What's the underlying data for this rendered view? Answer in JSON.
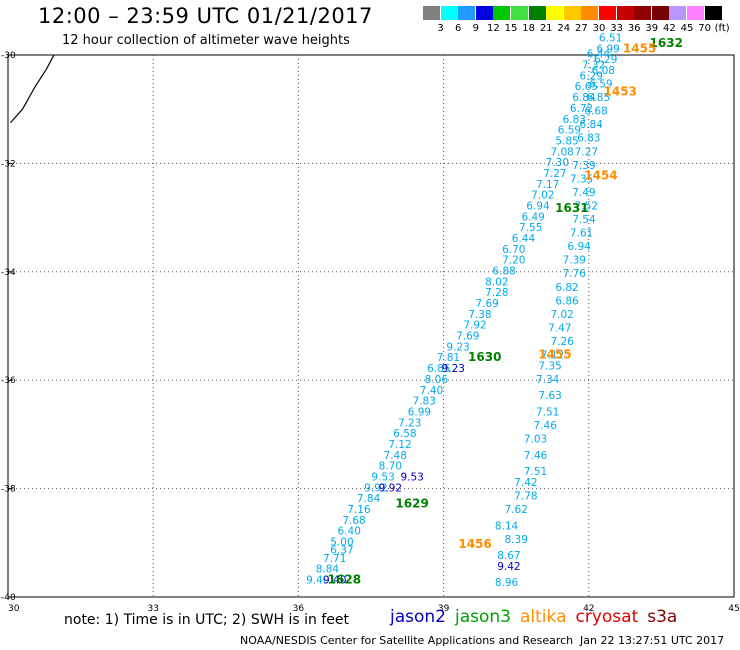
{
  "header": {
    "title": "12:00 – 23:59 UTC 01/21/2017",
    "subtitle": "12 hour collection of altimeter wave heights"
  },
  "legend": {
    "colors": [
      "#808080",
      "#00ffff",
      "#1e9cff",
      "#0000e0",
      "#00c800",
      "#40e040",
      "#008000",
      "#ffff00",
      "#ffc800",
      "#ff8c00",
      "#ff0000",
      "#c80000",
      "#900000",
      "#780000",
      "#b896ff",
      "#ff80ff",
      "#000000"
    ],
    "labels": [
      "3",
      "6",
      "9",
      "12",
      "15",
      "18",
      "21",
      "24",
      "27",
      "30",
      "33",
      "36",
      "39",
      "42",
      "45",
      "70"
    ],
    "unit": "(ft)"
  },
  "map": {
    "lon_range": [
      30,
      45
    ],
    "lat_range": [
      -40,
      -30
    ],
    "x_tick_labels": [
      "30",
      "33",
      "36",
      "39",
      "42",
      "45"
    ],
    "y_tick_labels": [
      "-30",
      "-32",
      "-34",
      "-36",
      "-38",
      "-40"
    ],
    "grid": "dotted",
    "coastline": [
      [
        30.05,
        -31.25
      ],
      [
        30.3,
        -31.0
      ],
      [
        30.55,
        -30.6
      ],
      [
        30.8,
        -30.25
      ],
      [
        30.95,
        -30.0
      ]
    ]
  },
  "tracks": [
    {
      "satellite": "jason3",
      "color": "#00aaee",
      "points": [
        [
          36.4,
          -39.75,
          "9.40"
        ],
        [
          36.6,
          -39.55,
          "8.84"
        ],
        [
          36.75,
          -39.35,
          "7.71"
        ],
        [
          36.9,
          -39.2,
          "6.37"
        ],
        [
          36.9,
          -39.05,
          "5.00"
        ],
        [
          37.05,
          -38.85,
          "6.40"
        ],
        [
          37.15,
          -38.65,
          "7.68"
        ],
        [
          37.25,
          -38.45,
          "7.16"
        ],
        [
          37.45,
          -38.25,
          "7.84"
        ],
        [
          37.6,
          -38.05,
          "9.92"
        ],
        [
          37.75,
          -37.85,
          "9.53"
        ],
        [
          37.9,
          -37.65,
          "8.70"
        ],
        [
          38.0,
          -37.45,
          "7.48"
        ],
        [
          38.1,
          -37.25,
          "7.12"
        ],
        [
          38.2,
          -37.05,
          "6.58"
        ],
        [
          38.3,
          -36.85,
          "7.23"
        ],
        [
          38.5,
          -36.65,
          "6.99"
        ],
        [
          38.6,
          -36.45,
          "7.83"
        ],
        [
          38.75,
          -36.25,
          "7.40"
        ],
        [
          38.85,
          -36.05,
          "8.06"
        ],
        [
          38.9,
          -35.85,
          "6.85"
        ],
        [
          39.1,
          -35.65,
          "7.81"
        ],
        [
          39.3,
          -35.45,
          "9.23"
        ],
        [
          39.5,
          -35.25,
          "7.69"
        ],
        [
          39.65,
          -35.05,
          "7.92"
        ],
        [
          39.75,
          -34.85,
          "7.38"
        ],
        [
          39.9,
          -34.65,
          "7.69"
        ],
        [
          40.1,
          -34.45,
          "7.28"
        ],
        [
          40.1,
          -34.25,
          "8.02"
        ],
        [
          40.25,
          -34.05,
          "6.88"
        ],
        [
          40.45,
          -33.85,
          "7.20"
        ],
        [
          40.45,
          -33.65,
          "6.70"
        ],
        [
          40.65,
          -33.45,
          "6.44"
        ],
        [
          40.8,
          -33.25,
          "7.55"
        ],
        [
          40.85,
          -33.05,
          "6.49"
        ],
        [
          40.95,
          -32.85,
          "6.94"
        ],
        [
          41.05,
          -32.65,
          "7.02"
        ],
        [
          41.15,
          -32.45,
          "7.17"
        ],
        [
          41.3,
          -32.25,
          "7.27"
        ],
        [
          41.35,
          -32.05,
          "7.30"
        ],
        [
          41.45,
          -31.85,
          "7.08"
        ],
        [
          41.55,
          -31.65,
          "5.85"
        ],
        [
          41.6,
          -31.45,
          "6.59"
        ],
        [
          41.7,
          -31.25,
          "6.83"
        ],
        [
          41.85,
          -31.05,
          "6.72"
        ],
        [
          41.9,
          -30.85,
          "6.84"
        ],
        [
          41.95,
          -30.65,
          "6.65"
        ],
        [
          42.05,
          -30.45,
          "6.29"
        ],
        [
          42.1,
          -30.25,
          "7.32"
        ],
        [
          42.2,
          -30.05,
          "6.44"
        ]
      ]
    },
    {
      "satellite": "jason2",
      "color": "#0000c8",
      "points": [
        [
          36.75,
          -39.75,
          "9.40"
        ],
        [
          37.9,
          -38.05,
          "9.92"
        ],
        [
          38.35,
          -37.85,
          "9.53"
        ],
        [
          39.2,
          -35.85,
          "9.23"
        ],
        [
          40.35,
          -39.5,
          "9.42"
        ]
      ]
    },
    {
      "satellite": "jason3",
      "color": "#00aaee",
      "points": [
        [
          40.3,
          -39.8,
          "8.96"
        ],
        [
          40.35,
          -39.3,
          "8.67"
        ],
        [
          40.5,
          -39.0,
          "8.39"
        ],
        [
          40.3,
          -38.75,
          "8.14"
        ],
        [
          40.5,
          -38.45,
          "7.62"
        ],
        [
          40.7,
          -38.2,
          "7.78"
        ],
        [
          40.7,
          -37.95,
          "7.42"
        ],
        [
          40.9,
          -37.75,
          "7.51"
        ],
        [
          40.9,
          -37.45,
          "7.46"
        ],
        [
          40.9,
          -37.15,
          "7.03"
        ],
        [
          41.1,
          -36.9,
          "7.46"
        ],
        [
          41.15,
          -36.65,
          "7.51"
        ],
        [
          41.2,
          -36.35,
          "7.63"
        ],
        [
          41.15,
          -36.05,
          "7.34"
        ],
        [
          41.2,
          -35.8,
          "7.35"
        ],
        [
          41.25,
          -35.6,
          "7.12"
        ],
        [
          41.45,
          -35.35,
          "7.26"
        ],
        [
          41.4,
          -35.1,
          "7.47"
        ],
        [
          41.45,
          -34.85,
          "7.02"
        ],
        [
          41.55,
          -34.6,
          "6.86"
        ],
        [
          41.55,
          -34.35,
          "6.82"
        ],
        [
          41.7,
          -34.1,
          "7.76"
        ],
        [
          41.7,
          -33.85,
          "7.39"
        ],
        [
          41.8,
          -33.6,
          "6.94"
        ],
        [
          41.85,
          -33.35,
          "7.61"
        ],
        [
          41.9,
          -33.1,
          "7.54"
        ],
        [
          41.95,
          -32.85,
          "7.52"
        ],
        [
          41.9,
          -32.6,
          "7.49"
        ],
        [
          41.85,
          -32.35,
          "7.35"
        ],
        [
          41.9,
          -32.1,
          "7.39"
        ],
        [
          41.95,
          -31.85,
          "7.27"
        ],
        [
          42.0,
          -31.6,
          "6.83"
        ],
        [
          42.05,
          -31.35,
          "6.84"
        ],
        [
          42.15,
          -31.1,
          "6.68"
        ],
        [
          42.2,
          -30.85,
          "6.85"
        ],
        [
          42.25,
          -30.6,
          "6.59"
        ],
        [
          42.3,
          -30.35,
          "6.08"
        ],
        [
          42.35,
          -30.15,
          "6.29"
        ],
        [
          42.4,
          -29.95,
          "6.99"
        ],
        [
          42.45,
          -29.75,
          "6.51"
        ]
      ]
    }
  ],
  "time_labels": [
    {
      "lon": 43.6,
      "lat": -29.85,
      "text": "1632",
      "satellite": "jason3",
      "color": "#008000"
    },
    {
      "lon": 43.05,
      "lat": -29.95,
      "text": "1455",
      "satellite": "altika",
      "color": "#ff8c00"
    },
    {
      "lon": 42.65,
      "lat": -30.75,
      "text": "1453",
      "satellite": "altika",
      "color": "#ff8c00"
    },
    {
      "lon": 42.25,
      "lat": -32.3,
      "text": "1454",
      "satellite": "altika",
      "color": "#ff8c00"
    },
    {
      "lon": 41.65,
      "lat": -32.9,
      "text": "1631",
      "satellite": "jason3",
      "color": "#008000"
    },
    {
      "lon": 41.3,
      "lat": -35.6,
      "text": "1455",
      "satellite": "altika",
      "color": "#ff8c00"
    },
    {
      "lon": 39.85,
      "lat": -35.65,
      "text": "1630",
      "satellite": "jason3",
      "color": "#008000"
    },
    {
      "lon": 38.35,
      "lat": -38.35,
      "text": "1629",
      "satellite": "jason3",
      "color": "#008000"
    },
    {
      "lon": 39.65,
      "lat": -39.1,
      "text": "1456",
      "satellite": "altika",
      "color": "#ff8c00"
    },
    {
      "lon": 36.95,
      "lat": -39.75,
      "text": "1628",
      "satellite": "jason3",
      "color": "#008000"
    }
  ],
  "footer": {
    "note": "note: 1) Time is in UTC; 2) SWH is in feet",
    "satellites": [
      {
        "name": "jason2",
        "color": "#0000c8"
      },
      {
        "name": "jason3",
        "color": "#00a000"
      },
      {
        "name": "altika",
        "color": "#ff8c00"
      },
      {
        "name": "cryosat",
        "color": "#e00000"
      },
      {
        "name": "s3a",
        "color": "#800000"
      }
    ],
    "credit": "NOAA/NESDIS Center for Satellite Applications and Research",
    "timestamp": "Jan 22 13:27:51 UTC 2017"
  }
}
